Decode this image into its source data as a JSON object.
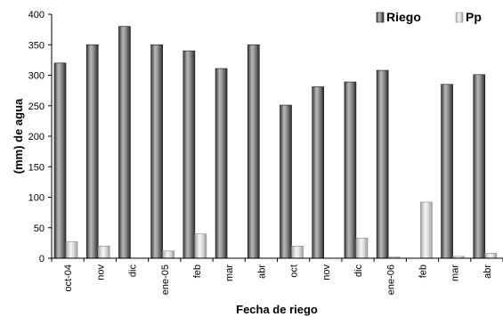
{
  "chart_data": {
    "type": "bar",
    "categories": [
      "oct-04",
      "nov",
      "dic",
      "ene-05",
      "feb",
      "mar",
      "abr",
      "oct",
      "nov",
      "dic",
      "ene-06",
      "feb",
      "mar",
      "abr"
    ],
    "series": [
      {
        "name": "Riego",
        "values": [
          320,
          350,
          380,
          350,
          340,
          311,
          350,
          251,
          281,
          289,
          308,
          0,
          285,
          301
        ],
        "color": "#666666"
      },
      {
        "name": "Pp",
        "values": [
          27,
          20,
          0,
          12,
          40,
          0,
          0,
          20,
          0,
          33,
          2,
          92,
          3,
          8
        ],
        "color": "#cccccc"
      }
    ],
    "xlabel": "Fecha de riego",
    "ylabel": "(mm) de agua",
    "ylim": [
      0,
      400
    ],
    "yticks": [
      0,
      50,
      100,
      150,
      200,
      250,
      300,
      350,
      400
    ],
    "grid": false,
    "legend_position": "top-right"
  }
}
